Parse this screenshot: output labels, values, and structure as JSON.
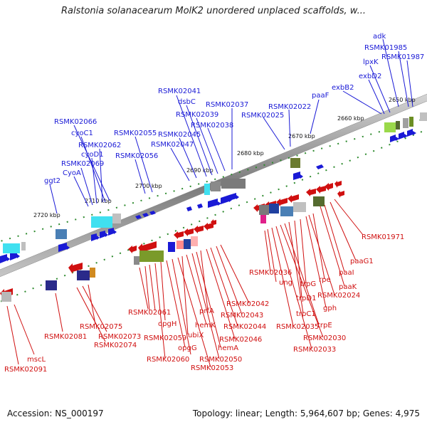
{
  "title": "Ralstonia solanacearum MolK2 unordered unplaced scaffolds, w...",
  "footer": {
    "accession": "Accession: NS_000197",
    "stats": "Topology: linear; Length: 5,964,607 bp; Genes: 4,975"
  },
  "colors": {
    "forward": "#1a1ad6",
    "reverse": "#d01010",
    "backbone": "#7a7a7a",
    "tick": "#2e8b2e"
  },
  "kbp_ticks": [
    "2650 kbp",
    "2660 kbp",
    "2670 kbp",
    "2680 kbp",
    "2690 kbp",
    "2700 kbp",
    "2710 kbp",
    "2720 kbp"
  ],
  "forward_genes": [
    "adk",
    "RSMK01985",
    "lpxK",
    "RSMK01987",
    "exbD2",
    "exbB2",
    "paaF",
    "RSMK02022",
    "RSMK02025",
    "RSMK02037",
    "RSMK02038",
    "RSMK02039",
    "dsbC",
    "RSMK02041",
    "RSMK02045",
    "RSMK02047",
    "RSMK02055",
    "RSMK02056",
    "RSMK02066",
    "cyoC1",
    "RSMK02062",
    "cyoD1",
    "RSMK02069",
    "CyoA",
    "ggt2"
  ],
  "reverse_genes": [
    "RSMK01971",
    "paaG1",
    "paaI",
    "paaK",
    "rpe",
    "RSMK02024",
    "gph",
    "trpG",
    "trpD1",
    "trpC1",
    "trpE",
    "RSMK02030",
    "RSMK02033",
    "RSMK02035",
    "ung",
    "RSMK02036",
    "RSMK02042",
    "RSMK02043",
    "RSMK02044",
    "RSMK02046",
    "prfA",
    "hemA",
    "RSMK02050",
    "hemK",
    "ubiX",
    "RSMK02053",
    "RSMK02059",
    "opgG",
    "RSMK02060",
    "opgH",
    "RSMK02061",
    "RSMK02075",
    "RSMK02073",
    "RSMK02074",
    "RSMK02081",
    "mscL",
    "RSMK02091"
  ]
}
